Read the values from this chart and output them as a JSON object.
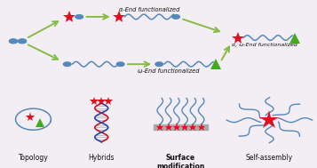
{
  "bg_top": "#f2eef4",
  "bg_bottom": "#e5ede5",
  "blue_color": "#5588bb",
  "star_color": "#dd1122",
  "triangle_color": "#44aa22",
  "arrow_color": "#88bb44",
  "text_color": "#111111",
  "label_alpha_end": "α-End functionalized",
  "label_omega_end": "ω-End functionalized",
  "label_alpha_omega": "α, ω-End functionalized",
  "label_topology": "Topology",
  "label_hybrids": "Hybrids",
  "label_surface": "Surface\nmodification",
  "label_selfassembly": "Self-assembly",
  "fig_width": 3.57,
  "fig_height": 1.89,
  "dpi": 100
}
